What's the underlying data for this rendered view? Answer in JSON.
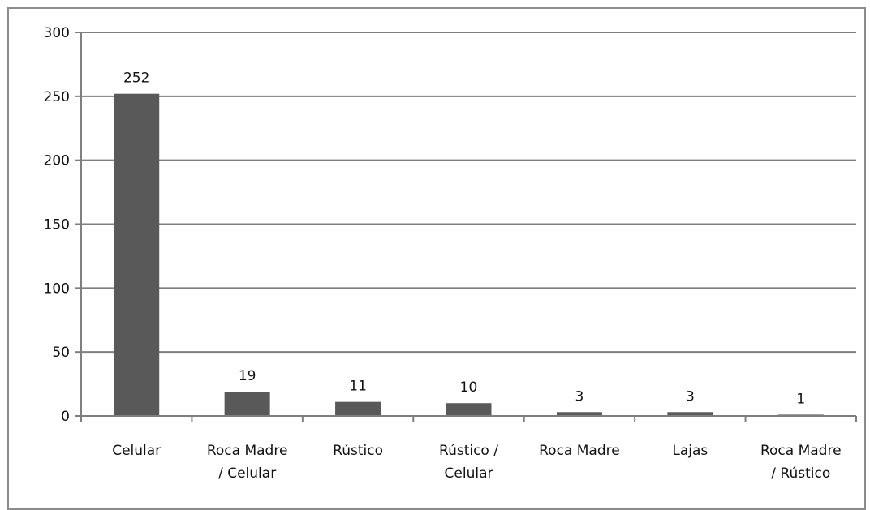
{
  "chart_data": {
    "type": "bar",
    "categories": [
      [
        "Celular"
      ],
      [
        "Roca Madre",
        "/ Celular"
      ],
      [
        "Rústico"
      ],
      [
        "Rústico /",
        "Celular"
      ],
      [
        "Roca Madre"
      ],
      [
        "Lajas"
      ],
      [
        "Roca Madre",
        "/ Rústico"
      ]
    ],
    "values": [
      252,
      19,
      11,
      10,
      3,
      3,
      1
    ],
    "data_labels": [
      "252",
      "19",
      "11",
      "10",
      "3",
      "3",
      "1"
    ],
    "y_ticks": [
      0,
      50,
      100,
      150,
      200,
      250,
      300
    ],
    "ylim": [
      0,
      300
    ],
    "title": "",
    "xlabel": "",
    "ylabel": "",
    "grid": true,
    "legend": "none",
    "colors": {
      "bar": "#595959",
      "grid": "#7f7f7f",
      "axis": "#7f7f7f"
    }
  }
}
